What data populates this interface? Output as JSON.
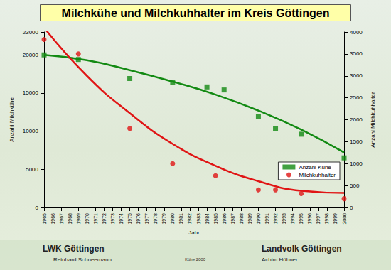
{
  "chart_data": {
    "type": "scatter",
    "title": "Milchkühe und Milchkuhhalter im Kreis Göttingen",
    "x_label": "Jahr",
    "y_label": "Anzahl Milchkühe",
    "y2_label": "Anzahl Milchkuhhalter",
    "xlim": [
      1965,
      2000
    ],
    "xticks": [
      1965,
      1966,
      1967,
      1968,
      1969,
      1970,
      1971,
      1972,
      1973,
      1974,
      1975,
      1976,
      1977,
      1978,
      1979,
      1980,
      1981,
      1982,
      1983,
      1984,
      1985,
      1986,
      1987,
      1988,
      1989,
      1990,
      1991,
      1992,
      1993,
      1994,
      1995,
      1996,
      1997,
      1998,
      1999,
      2000
    ],
    "ylim": [
      0,
      23000
    ],
    "yticks": [
      0,
      5000,
      10000,
      15000,
      20000
    ],
    "y2lim": [
      0,
      4000
    ],
    "y2ticks": [
      0,
      500,
      1000,
      1500,
      2000,
      2500,
      3000,
      3500,
      4000
    ],
    "grid": false,
    "legend": "lower right",
    "series": [
      {
        "name": "Anzahl Kühe",
        "color": "#138a13",
        "marker": "square",
        "axis": "y",
        "x": [
          1965,
          1969,
          1975,
          1980,
          1984,
          1986,
          1990,
          1992,
          1995,
          2000
        ],
        "values": [
          20000,
          19400,
          16900,
          16400,
          15800,
          15400,
          11900,
          10300,
          9600,
          6500
        ],
        "trend_x": [
          1965,
          1970,
          1975,
          1980,
          1985,
          1990,
          1995,
          2000
        ],
        "trend_values": [
          20000,
          19300,
          18000,
          16500,
          14800,
          12700,
          10200,
          7200
        ]
      },
      {
        "name": "Milchkuhhalter",
        "color": "#e01515",
        "marker": "circle",
        "axis": "y2",
        "x": [
          1965,
          1969,
          1975,
          1980,
          1985,
          1990,
          1992,
          1995,
          2000
        ],
        "values": [
          3830,
          3500,
          1800,
          1000,
          725,
          400,
          400,
          315,
          200
        ],
        "trend_x": [
          1965,
          1970,
          1975,
          1980,
          1985,
          1990,
          1995,
          2000
        ],
        "trend_values": [
          4100,
          3000,
          2150,
          1450,
          950,
          600,
          380,
          330
        ]
      }
    ]
  },
  "footer": {
    "left_title": "LWK Göttingen",
    "left_name": "Reinhard Schneemann",
    "center": "Kühe 2000",
    "right_title": "Landvolk Göttingen",
    "right_name": "Achim Hübner"
  }
}
